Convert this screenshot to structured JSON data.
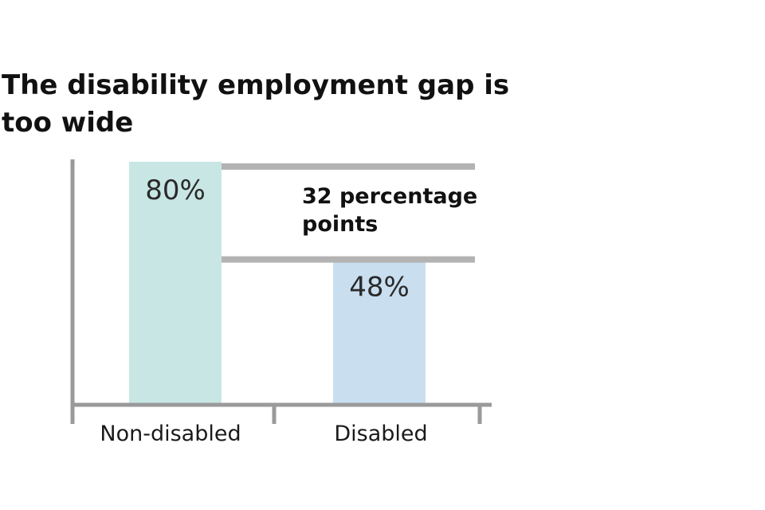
{
  "colors": {
    "non_disabled_bar": "#c8e7e4",
    "disabled_bar": "#c9dff0",
    "axis": "#9a9a9a",
    "gap_lines": "#b3b3b3"
  },
  "chart_data": {
    "type": "bar",
    "title": "The disability employment gap is too wide",
    "categories": [
      "Non-disabled",
      "Disabled"
    ],
    "values": [
      80,
      48
    ],
    "value_labels": [
      "80%",
      "48%"
    ],
    "xlabel": "",
    "ylabel": "",
    "ylim": [
      0,
      80
    ],
    "grid": false,
    "legend": "none",
    "annotation": {
      "lines": [
        "32 percentage",
        "points"
      ],
      "from_value": 80,
      "to_value": 48
    }
  }
}
